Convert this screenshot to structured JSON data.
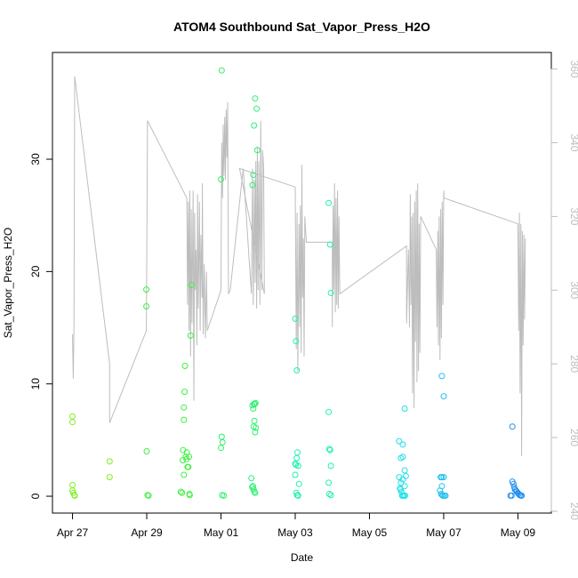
{
  "chart_data": {
    "type": "scatter",
    "title": "ATOM4 Southbound Sat_Vapor_Press_H2O",
    "xlabel": "Date",
    "ylabel": "Sat_Vapor_Press_H2O",
    "x_tick_labels": [
      "Apr 27",
      "Apr 29",
      "May 01",
      "May 03",
      "May 05",
      "May 07",
      "May 09"
    ],
    "x_tick_values": [
      0,
      2,
      4,
      6,
      8,
      10,
      12
    ],
    "y_ticks": [
      0,
      10,
      20,
      30
    ],
    "ylim": [
      -1.5,
      39.5
    ],
    "xlim": [
      -0.54,
      12.9
    ],
    "y2_ticks": [
      240,
      260,
      280,
      300,
      320,
      340,
      360
    ],
    "y2lim": [
      239.5,
      364.5
    ],
    "y2_line_color": "#bdbdbd",
    "point_colors": [
      "#7ff020",
      "#3ff040",
      "#2ef070",
      "#20f0b0",
      "#20e0e8",
      "#20c0f0",
      "#2090f0"
    ],
    "line_series": [
      [
        0.0,
        288.0
      ],
      [
        0.02,
        276.0
      ],
      [
        0.04,
        290.0
      ],
      [
        0.06,
        358.0
      ],
      [
        1.0,
        280.0
      ],
      [
        1.0,
        264.0
      ],
      [
        1.99,
        289.0
      ],
      [
        2.02,
        346.0
      ],
      [
        3.08,
        325.0
      ],
      [
        3.1,
        296.0
      ],
      [
        3.12,
        324.0
      ],
      [
        3.14,
        289.0
      ],
      [
        3.16,
        327.0
      ],
      [
        3.18,
        282.0
      ],
      [
        3.2,
        322.0
      ],
      [
        3.22,
        291.0
      ],
      [
        3.25,
        327.0
      ],
      [
        3.27,
        270.0
      ],
      [
        3.29,
        321.0
      ],
      [
        3.31,
        300.0
      ],
      [
        3.33,
        311.0
      ],
      [
        3.35,
        285.0
      ],
      [
        3.37,
        326.0
      ],
      [
        3.39,
        295.0
      ],
      [
        3.42,
        324.0
      ],
      [
        3.44,
        289.0
      ],
      [
        3.46,
        315.0
      ],
      [
        3.49,
        298.0
      ],
      [
        3.5,
        329.0
      ],
      [
        3.52,
        288.0
      ],
      [
        3.55,
        307.0
      ],
      [
        3.58,
        287.0
      ],
      [
        3.61,
        305.0
      ],
      [
        3.63,
        289.0
      ],
      [
        4.0,
        300.0
      ],
      [
        4.02,
        340.0
      ],
      [
        4.04,
        325.0
      ],
      [
        4.06,
        345.0
      ],
      [
        4.08,
        331.0
      ],
      [
        4.1,
        347.0
      ],
      [
        4.12,
        330.0
      ],
      [
        4.14,
        349.0
      ],
      [
        4.16,
        336.0
      ],
      [
        4.18,
        351.0
      ],
      [
        4.2,
        299.0
      ],
      [
        4.25,
        300.0
      ],
      [
        4.6,
        333.0
      ],
      [
        4.82,
        299.0
      ],
      [
        4.85,
        333.0
      ],
      [
        4.87,
        296.0
      ],
      [
        4.9,
        330.0
      ],
      [
        4.92,
        302.0
      ],
      [
        4.94,
        335.0
      ],
      [
        4.96,
        295.0
      ],
      [
        4.98,
        339.0
      ],
      [
        5.0,
        300.0
      ],
      [
        5.02,
        335.0
      ],
      [
        5.05,
        296.0
      ],
      [
        5.07,
        346.0
      ],
      [
        5.1,
        300.0
      ],
      [
        5.12,
        338.0
      ],
      [
        5.15,
        333.0
      ],
      [
        5.17,
        299.0
      ],
      [
        4.5,
        333.0
      ],
      [
        6.0,
        328.0
      ],
      [
        6.03,
        284.0
      ],
      [
        6.05,
        321.0
      ],
      [
        6.07,
        278.0
      ],
      [
        6.1,
        318.0
      ],
      [
        6.12,
        290.0
      ],
      [
        6.14,
        323.0
      ],
      [
        6.16,
        283.0
      ],
      [
        6.18,
        334.0
      ],
      [
        6.2,
        298.0
      ],
      [
        6.22,
        314.0
      ],
      [
        6.24,
        282.0
      ],
      [
        6.26,
        320.0
      ],
      [
        6.3,
        313.0
      ],
      [
        7.0,
        313.0
      ],
      [
        7.0,
        290.0
      ],
      [
        7.02,
        323.0
      ],
      [
        7.04,
        300.0
      ],
      [
        7.06,
        329.0
      ],
      [
        7.08,
        294.0
      ],
      [
        7.1,
        325.0
      ],
      [
        7.12,
        296.0
      ],
      [
        7.14,
        327.0
      ],
      [
        7.16,
        295.0
      ],
      [
        7.18,
        320.0
      ],
      [
        7.2,
        299.0
      ],
      [
        9.0,
        312.0
      ],
      [
        9.0,
        291.0
      ],
      [
        9.05,
        311.0
      ],
      [
        9.08,
        290.0
      ],
      [
        9.1,
        326.0
      ],
      [
        9.12,
        296.0
      ],
      [
        9.14,
        320.0
      ],
      [
        9.16,
        272.0
      ],
      [
        9.18,
        321.0
      ],
      [
        9.2,
        268.0
      ],
      [
        9.22,
        324.0
      ],
      [
        9.24,
        286.0
      ],
      [
        9.26,
        327.0
      ],
      [
        9.28,
        275.0
      ],
      [
        9.3,
        329.0
      ],
      [
        9.32,
        278.0
      ],
      [
        9.34,
        318.0
      ],
      [
        9.36,
        283.0
      ],
      [
        9.38,
        320.0
      ],
      [
        9.8,
        311.0
      ],
      [
        9.82,
        290.0
      ],
      [
        9.84,
        316.0
      ],
      [
        9.86,
        285.0
      ],
      [
        9.88,
        320.0
      ],
      [
        9.9,
        281.0
      ],
      [
        9.92,
        322.0
      ],
      [
        9.94,
        287.0
      ],
      [
        9.96,
        324.0
      ],
      [
        9.98,
        296.0
      ],
      [
        10.0,
        327.0
      ],
      [
        10.01,
        325.0
      ],
      [
        12.0,
        318.0
      ],
      [
        12.02,
        289.0
      ],
      [
        12.04,
        321.0
      ],
      [
        12.06,
        272.0
      ],
      [
        12.08,
        318.0
      ],
      [
        12.1,
        255.0
      ],
      [
        12.12,
        316.0
      ],
      [
        12.14,
        285.0
      ],
      [
        12.16,
        315.0
      ],
      [
        12.18,
        292.0
      ],
      [
        12.2,
        314.0
      ]
    ],
    "points": [
      [
        0.0,
        7.1,
        0
      ],
      [
        0.0,
        6.6,
        0
      ],
      [
        0.0,
        1.0,
        0
      ],
      [
        0.0,
        0.5,
        0
      ],
      [
        0.02,
        0.3,
        0
      ],
      [
        0.05,
        0.1,
        0
      ],
      [
        0.06,
        0.05,
        0
      ],
      [
        1.0,
        3.1,
        0
      ],
      [
        1.0,
        1.7,
        0
      ],
      [
        1.99,
        18.4,
        1
      ],
      [
        1.99,
        16.9,
        1
      ],
      [
        2.0,
        4.0,
        1
      ],
      [
        2.02,
        0.1,
        1
      ],
      [
        2.05,
        0.05,
        1
      ],
      [
        2.92,
        0.4,
        1
      ],
      [
        2.95,
        0.3,
        1
      ],
      [
        2.97,
        3.2,
        1
      ],
      [
        2.98,
        4.1,
        1
      ],
      [
        3.0,
        6.8,
        1
      ],
      [
        3.0,
        7.9,
        1
      ],
      [
        3.02,
        9.3,
        1
      ],
      [
        3.03,
        11.6,
        1
      ],
      [
        3.05,
        3.5,
        1
      ],
      [
        3.07,
        3.3,
        1
      ],
      [
        3.08,
        3.9,
        1
      ],
      [
        3.1,
        2.6,
        1
      ],
      [
        3.12,
        2.6,
        1
      ],
      [
        3.14,
        3.5,
        1
      ],
      [
        3.15,
        0.2,
        1
      ],
      [
        3.16,
        0.1,
        1
      ],
      [
        3.18,
        14.3,
        1
      ],
      [
        3.2,
        18.8,
        1
      ],
      [
        3.0,
        1.9,
        1
      ],
      [
        4.0,
        28.2,
        2
      ],
      [
        4.02,
        37.9,
        2
      ],
      [
        4.0,
        4.3,
        2
      ],
      [
        4.02,
        5.3,
        2
      ],
      [
        4.04,
        4.8,
        2
      ],
      [
        4.03,
        0.1,
        2
      ],
      [
        4.08,
        0.05,
        2
      ],
      [
        4.82,
        1.6,
        2
      ],
      [
        4.84,
        0.8,
        2
      ],
      [
        4.86,
        0.9,
        2
      ],
      [
        4.88,
        0.6,
        2
      ],
      [
        4.9,
        0.4,
        2
      ],
      [
        4.92,
        0.3,
        2
      ],
      [
        4.85,
        8.1,
        2
      ],
      [
        4.87,
        7.8,
        2
      ],
      [
        4.89,
        8.2,
        2
      ],
      [
        4.91,
        8.2,
        2
      ],
      [
        4.93,
        8.3,
        2
      ],
      [
        4.88,
        6.2,
        2
      ],
      [
        4.9,
        6.7,
        2
      ],
      [
        4.92,
        5.7,
        2
      ],
      [
        4.94,
        6.1,
        2
      ],
      [
        4.85,
        27.7,
        2
      ],
      [
        4.87,
        28.6,
        2
      ],
      [
        4.89,
        33.0,
        2
      ],
      [
        4.92,
        35.4,
        2
      ],
      [
        4.96,
        34.5,
        2
      ],
      [
        4.98,
        30.8,
        2
      ],
      [
        6.0,
        15.8,
        3
      ],
      [
        6.02,
        13.8,
        3
      ],
      [
        6.04,
        11.2,
        3
      ],
      [
        6.0,
        2.9,
        3
      ],
      [
        6.02,
        2.8,
        3
      ],
      [
        6.04,
        3.4,
        3
      ],
      [
        6.06,
        3.9,
        3
      ],
      [
        6.08,
        2.7,
        3
      ],
      [
        6.0,
        1.9,
        3
      ],
      [
        6.03,
        0.3,
        3
      ],
      [
        6.05,
        0.1,
        3
      ],
      [
        6.1,
        1.1,
        3
      ],
      [
        6.08,
        0.05,
        3
      ],
      [
        6.9,
        26.1,
        3
      ],
      [
        6.94,
        22.4,
        3
      ],
      [
        6.96,
        18.1,
        3
      ],
      [
        6.9,
        7.5,
        3
      ],
      [
        6.92,
        4.2,
        3
      ],
      [
        6.94,
        4.1,
        3
      ],
      [
        6.96,
        2.7,
        3
      ],
      [
        6.9,
        1.2,
        3
      ],
      [
        6.92,
        0.2,
        3
      ],
      [
        6.96,
        0.1,
        3
      ],
      [
        8.8,
        4.9,
        4
      ],
      [
        8.9,
        4.6,
        4
      ],
      [
        8.85,
        3.4,
        4
      ],
      [
        8.9,
        3.5,
        4
      ],
      [
        8.95,
        2.3,
        4
      ],
      [
        8.8,
        1.7,
        4
      ],
      [
        8.85,
        1.2,
        4
      ],
      [
        8.9,
        1.5,
        4
      ],
      [
        8.95,
        0.9,
        4
      ],
      [
        8.82,
        0.7,
        4
      ],
      [
        8.84,
        0.6,
        4
      ],
      [
        8.86,
        0.4,
        4
      ],
      [
        8.88,
        0.05,
        4
      ],
      [
        8.9,
        0.05,
        4
      ],
      [
        8.93,
        0.05,
        4
      ],
      [
        8.96,
        0.05,
        4
      ],
      [
        8.95,
        7.8,
        4
      ],
      [
        8.98,
        1.8,
        4
      ],
      [
        9.95,
        10.7,
        5
      ],
      [
        10.0,
        8.9,
        5
      ],
      [
        9.92,
        1.7,
        5
      ],
      [
        9.95,
        1.7,
        5
      ],
      [
        10.0,
        1.7,
        5
      ],
      [
        9.9,
        0.5,
        5
      ],
      [
        9.93,
        0.2,
        5
      ],
      [
        9.96,
        0.1,
        5
      ],
      [
        9.98,
        0.05,
        5
      ],
      [
        10.02,
        0.05,
        5
      ],
      [
        10.05,
        0.05,
        5
      ],
      [
        9.95,
        0.9,
        5
      ],
      [
        11.85,
        6.2,
        6
      ],
      [
        11.85,
        1.3,
        6
      ],
      [
        11.88,
        1.1,
        6
      ],
      [
        11.9,
        0.8,
        6
      ],
      [
        11.92,
        0.6,
        6
      ],
      [
        11.95,
        0.5,
        6
      ],
      [
        11.97,
        0.4,
        6
      ],
      [
        12.0,
        0.3,
        6
      ],
      [
        12.02,
        0.2,
        6
      ],
      [
        12.05,
        0.1,
        6
      ],
      [
        12.08,
        0.05,
        6
      ],
      [
        12.1,
        0.05,
        6
      ],
      [
        11.8,
        0.05,
        6
      ],
      [
        11.83,
        0.05,
        6
      ]
    ],
    "grid": false,
    "legend": "none"
  }
}
